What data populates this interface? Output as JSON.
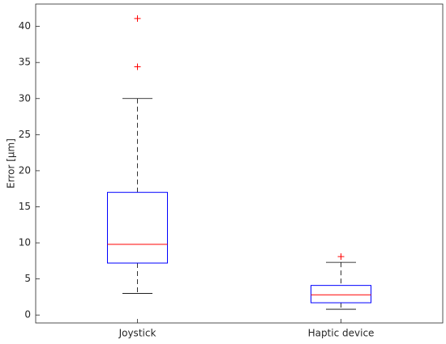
{
  "chart_data": {
    "type": "box",
    "y_label": "Error [µm]",
    "categories": [
      "Joystick",
      "Haptic device"
    ],
    "boxes": [
      {
        "min": 3.0,
        "q1": 7.2,
        "median": 9.8,
        "q3": 17.0,
        "max": 30.0,
        "outliers": [
          34.4,
          41.1
        ]
      },
      {
        "min": 0.8,
        "q1": 1.7,
        "median": 2.8,
        "q3": 4.1,
        "max": 7.3,
        "outliers": [
          8.1
        ]
      }
    ],
    "box_color": "#0000ff",
    "median_color": "#ff0000",
    "whisker_color": "#000000",
    "outlier_color": "#ff0000",
    "ylim": [
      -1.1,
      43.1
    ],
    "yticks": [
      0,
      5,
      10,
      15,
      20,
      25,
      30,
      35,
      40
    ],
    "grid": false
  }
}
